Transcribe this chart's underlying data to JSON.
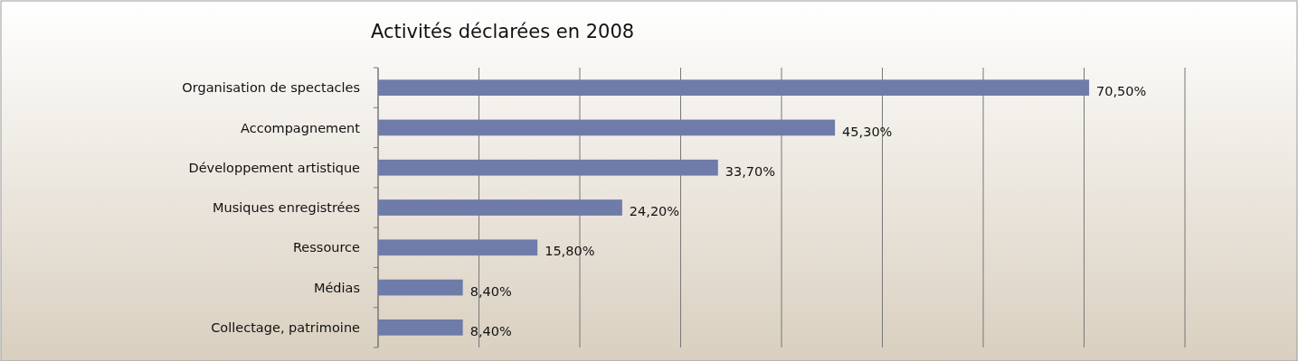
{
  "chart_data": {
    "type": "bar",
    "orientation": "horizontal",
    "title": "Activités déclarées en 2008",
    "categories": [
      "Organisation de spectacles",
      "Accompagnement",
      "Développement artistique",
      "Musiques enregistrées",
      "Ressource",
      "Médias",
      "Collectage, patrimoine"
    ],
    "values": [
      70.5,
      45.3,
      33.7,
      24.2,
      15.8,
      8.4,
      8.4
    ],
    "value_labels": [
      "70,50%",
      "45,30%",
      "33,70%",
      "24,20%",
      "15,80%",
      "8,40%",
      "8,40%"
    ],
    "color": "#6f7ba8",
    "xlim": [
      0,
      80
    ],
    "xticks": [
      {
        "value": 0,
        "label": null
      },
      {
        "value": 10,
        "label": null
      },
      {
        "value": 20,
        "label": null
      },
      {
        "value": 30,
        "label": null
      },
      {
        "value": 40,
        "label": null
      },
      {
        "value": 50,
        "label": null
      },
      {
        "value": 60,
        "label": null
      },
      {
        "value": 70,
        "label": null
      },
      {
        "value": 80,
        "label": null
      }
    ],
    "grid": "x",
    "tick_labels": "y"
  }
}
